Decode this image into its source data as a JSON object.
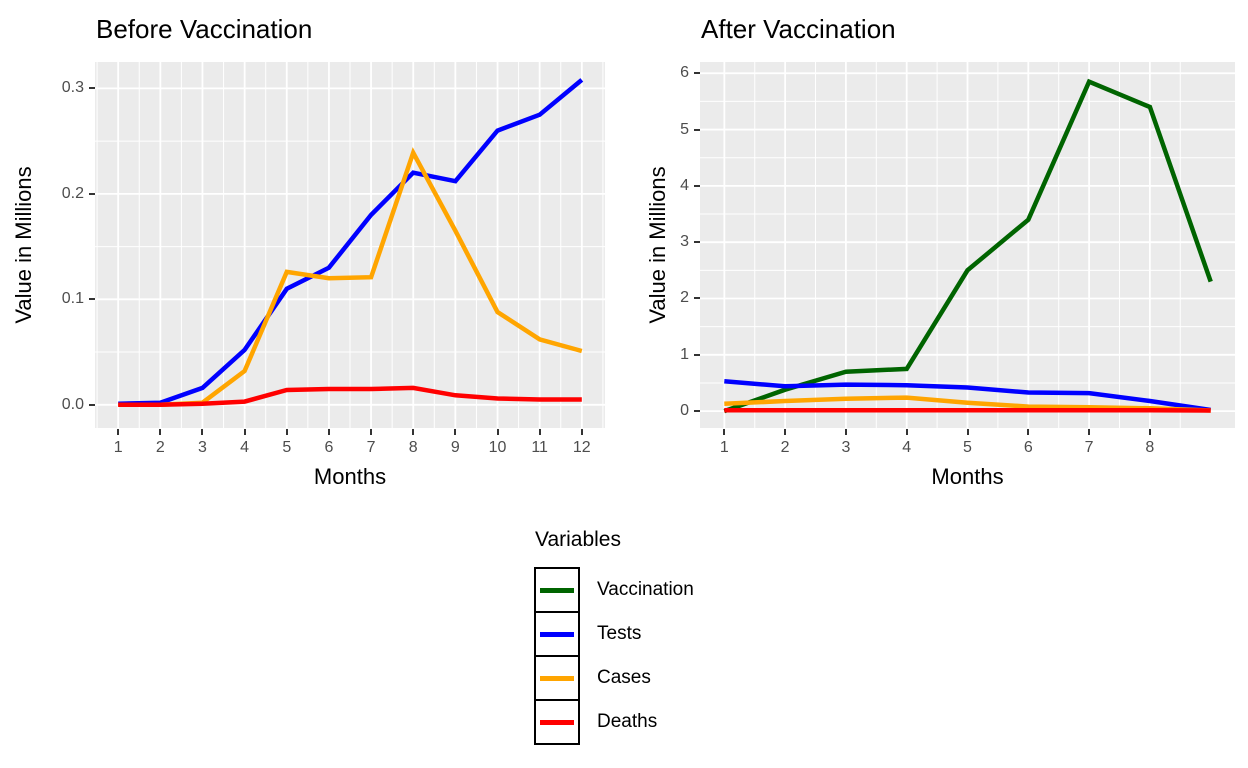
{
  "chart_data": [
    {
      "type": "line",
      "title": "Before Vaccination",
      "xlabel": "Months",
      "ylabel": "Value in Millions",
      "x": [
        1,
        2,
        3,
        4,
        5,
        6,
        7,
        8,
        9,
        10,
        11,
        12
      ],
      "xlim": [
        0.45,
        12.55
      ],
      "ylim": [
        -0.022,
        0.325
      ],
      "grid": true,
      "legend_position": "none",
      "x_ticks": {
        "values": [
          1,
          2,
          3,
          4,
          5,
          6,
          7,
          8,
          9,
          10,
          11,
          12
        ],
        "labels": [
          "1",
          "2",
          "3",
          "4",
          "5",
          "6",
          "7",
          "8",
          "9",
          "10",
          "11",
          "12"
        ]
      },
      "y_ticks": {
        "values": [
          0.0,
          0.1,
          0.2,
          0.3
        ],
        "labels": [
          "0.0",
          "0.1",
          "0.2",
          "0.3"
        ]
      },
      "series": [
        {
          "name": "Tests",
          "color": "#0000FF",
          "values": [
            0.001,
            0.002,
            0.016,
            0.052,
            0.11,
            0.13,
            0.18,
            0.22,
            0.212,
            0.26,
            0.275,
            0.308
          ]
        },
        {
          "name": "Cases",
          "color": "#FFA500",
          "values": [
            0.0,
            0.0,
            0.002,
            0.032,
            0.126,
            0.12,
            0.121,
            0.239,
            0.165,
            0.088,
            0.062,
            0.051
          ]
        },
        {
          "name": "Deaths",
          "color": "#FF0000",
          "values": [
            0.0,
            0.0,
            0.001,
            0.003,
            0.014,
            0.015,
            0.015,
            0.016,
            0.009,
            0.006,
            0.005,
            0.005
          ]
        }
      ]
    },
    {
      "type": "line",
      "title": "After Vaccination",
      "xlabel": "Months",
      "ylabel": "Value in Millions",
      "x": [
        1,
        2,
        3,
        4,
        5,
        6,
        7,
        8,
        9
      ],
      "xlim": [
        0.6,
        9.4
      ],
      "ylim": [
        -0.3,
        6.2
      ],
      "grid": true,
      "legend_position": "none",
      "x_ticks": {
        "values": [
          1,
          2,
          3,
          4,
          5,
          6,
          7,
          8
        ],
        "labels": [
          "1",
          "2",
          "3",
          "4",
          "5",
          "6",
          "7",
          "8"
        ]
      },
      "y_ticks": {
        "values": [
          0,
          1,
          2,
          3,
          4,
          5,
          6
        ],
        "labels": [
          "0",
          "1",
          "2",
          "3",
          "4",
          "5",
          "6"
        ]
      },
      "series": [
        {
          "name": "Vaccination",
          "color": "#006400",
          "values": [
            0.0,
            0.38,
            0.7,
            0.75,
            2.5,
            3.4,
            5.85,
            5.4,
            2.3
          ]
        },
        {
          "name": "Tests",
          "color": "#0000FF",
          "values": [
            0.53,
            0.44,
            0.47,
            0.46,
            0.42,
            0.33,
            0.32,
            0.18,
            0.02
          ]
        },
        {
          "name": "Cases",
          "color": "#FFA500",
          "values": [
            0.13,
            0.18,
            0.22,
            0.24,
            0.15,
            0.08,
            0.07,
            0.05,
            0.01
          ]
        },
        {
          "name": "Deaths",
          "color": "#FF0000",
          "values": [
            0.015,
            0.015,
            0.015,
            0.015,
            0.015,
            0.015,
            0.015,
            0.015,
            0.01
          ]
        }
      ]
    }
  ],
  "legend": {
    "title": "Variables",
    "items": [
      {
        "label": "Vaccination",
        "color": "#006400"
      },
      {
        "label": "Tests",
        "color": "#0000FF"
      },
      {
        "label": "Cases",
        "color": "#FFA500"
      },
      {
        "label": "Deaths",
        "color": "#FF0000"
      }
    ]
  },
  "colors": {
    "panel_background": "#EBEBEB",
    "gridline": "#FFFFFF",
    "tick_text": "#4D4D4D",
    "text": "#000000"
  }
}
